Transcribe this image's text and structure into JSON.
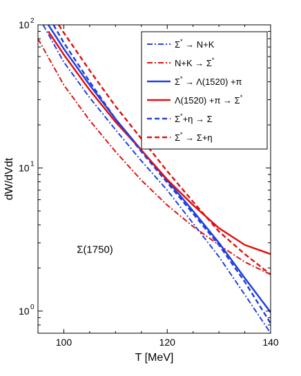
{
  "chart_data": {
    "type": "line",
    "xlabel": "T [MeV]",
    "ylabel": "dW/dVdt",
    "xlim": [
      95,
      140
    ],
    "ylim": [
      0.7,
      100
    ],
    "yscale": "log",
    "xticks": [
      100,
      120,
      140
    ],
    "xtick_labels": [
      "100",
      "120",
      "140"
    ],
    "yticks": [
      1,
      10,
      100
    ],
    "ytick_labels": [
      "10",
      "10",
      "10"
    ],
    "ytick_exponents": [
      "0",
      "1",
      "2"
    ],
    "legend_position": "top-right",
    "annotation": "Σ(1750)",
    "colors": {
      "blue": "#1f3fe0",
      "red": "#e01010"
    },
    "series": [
      {
        "name": "Σ* → N+K",
        "legend_main": "Σ → N+K",
        "legend_super": "*",
        "color": "#1f3fe0",
        "style": "dashdot",
        "width": 2,
        "x": [
          96,
          100,
          105,
          110,
          115,
          120,
          125,
          130,
          135,
          140
        ],
        "y": [
          100,
          55,
          31,
          18.5,
          11.2,
          7.0,
          4.1,
          2.4,
          1.3,
          0.7
        ]
      },
      {
        "name": "N+K → Σ*",
        "legend_main": "N+K → Σ",
        "legend_super": "*",
        "color": "#e01010",
        "style": "dashdot",
        "width": 2,
        "x": [
          95,
          100,
          105,
          110,
          115,
          120,
          125,
          130,
          135,
          140
        ],
        "y": [
          80,
          38,
          21.5,
          13.0,
          8.2,
          5.5,
          3.9,
          2.9,
          2.2,
          1.8
        ]
      },
      {
        "name": "Σ* → Λ(1520) +π",
        "legend_main": "Σ → Λ(1520) +π",
        "legend_super": "*",
        "color": "#1f3fe0",
        "style": "solid",
        "width": 2.5,
        "x": [
          97,
          100,
          105,
          110,
          115,
          120,
          125,
          130,
          135,
          140
        ],
        "y": [
          100,
          68,
          38,
          22,
          13.3,
          8.2,
          5.0,
          3.0,
          1.7,
          0.98
        ]
      },
      {
        "name": "Λ(1520) +π → Σ*",
        "legend_main": "Λ(1520) +π → Σ",
        "legend_super": "*",
        "color": "#e01010",
        "style": "solid",
        "width": 2.5,
        "x": [
          97,
          100,
          105,
          110,
          115,
          120,
          125,
          130,
          135,
          140
        ],
        "y": [
          90,
          62,
          35,
          21,
          13.3,
          8.3,
          5.5,
          3.8,
          2.9,
          2.5
        ]
      },
      {
        "name": "Σ+η → Σ*",
        "legend_main": "Σ+η → Σ",
        "legend_super": "*",
        "color": "#1f3fe0",
        "style": "dashed",
        "width": 2.5,
        "x": [
          98,
          100,
          105,
          110,
          115,
          120,
          125,
          130,
          135,
          140
        ],
        "y": [
          100,
          75,
          40,
          22,
          13.0,
          7.9,
          4.8,
          2.9,
          1.6,
          0.82
        ]
      },
      {
        "name": "Σ* → Σ+η",
        "legend_main": "Σ → Σ+η",
        "legend_super": "*",
        "color": "#e01010",
        "style": "dashed",
        "width": 2.5,
        "x": [
          99,
          100,
          105,
          110,
          115,
          120,
          125,
          130,
          135,
          140
        ],
        "y": [
          100,
          88,
          48,
          27,
          16,
          9.5,
          5.8,
          3.6,
          2.5,
          1.8
        ]
      }
    ]
  }
}
